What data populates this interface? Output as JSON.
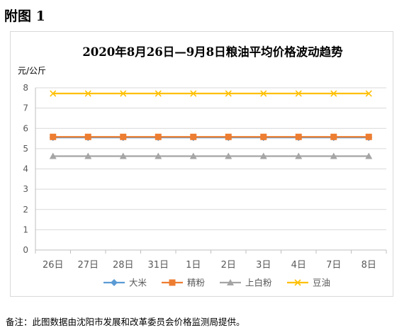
{
  "heading": "附图 1",
  "footnote": "备注：此图数据由沈阳市发展和改革委员会价格监测局提供。",
  "chart_data": {
    "type": "line",
    "title": "2020年8月26日—9月8日粮油平均价格波动趋势",
    "ylabel": "元/公斤",
    "xlabel": "",
    "ylim": [
      0,
      8
    ],
    "yticks": [
      0,
      1,
      2,
      3,
      4,
      5,
      6,
      7,
      8
    ],
    "grid": true,
    "legend_position": "bottom",
    "categories": [
      "26日",
      "27日",
      "28日",
      "31日",
      "1日",
      "2日",
      "3日",
      "4日",
      "7日",
      "8日"
    ],
    "series": [
      {
        "name": "大米",
        "color": "#5b9bd5",
        "marker": "diamond",
        "values": [
          5.55,
          5.55,
          5.55,
          5.55,
          5.55,
          5.55,
          5.55,
          5.55,
          5.55,
          5.55
        ]
      },
      {
        "name": "精粉",
        "color": "#ed7d31",
        "marker": "square",
        "values": [
          5.58,
          5.58,
          5.58,
          5.58,
          5.58,
          5.58,
          5.58,
          5.58,
          5.58,
          5.58
        ]
      },
      {
        "name": "上白粉",
        "color": "#a5a5a5",
        "marker": "triangle",
        "values": [
          4.63,
          4.63,
          4.63,
          4.63,
          4.63,
          4.63,
          4.63,
          4.63,
          4.63,
          4.63
        ]
      },
      {
        "name": "豆油",
        "color": "#ffc000",
        "marker": "x",
        "values": [
          7.72,
          7.72,
          7.72,
          7.72,
          7.72,
          7.72,
          7.72,
          7.72,
          7.72,
          7.72
        ]
      }
    ]
  }
}
